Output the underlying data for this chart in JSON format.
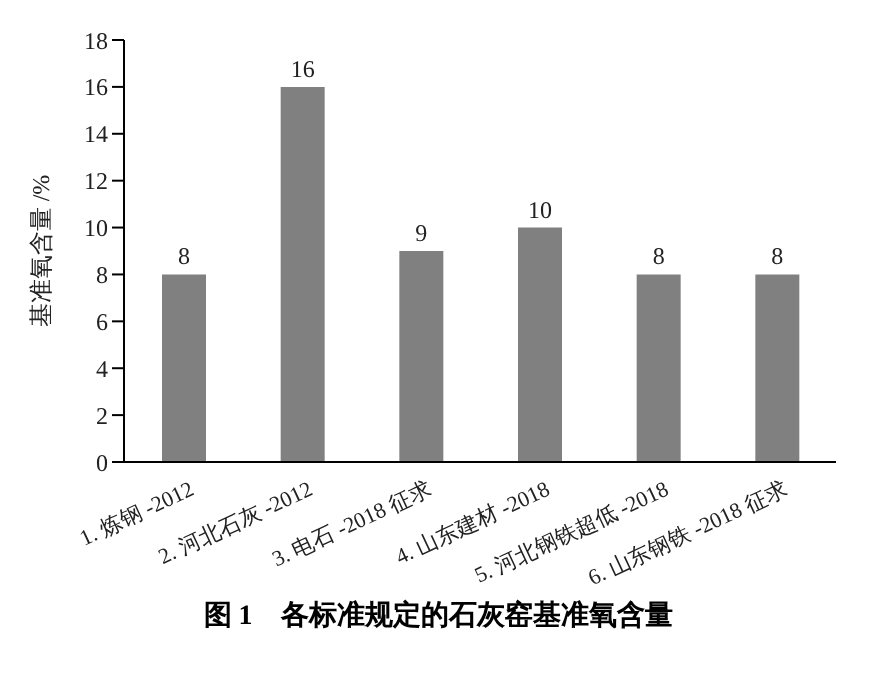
{
  "chart_data": {
    "type": "bar",
    "title": "图 1　各标准规定的石灰窑基准氧含量",
    "ylabel": "基准氧含量 /%",
    "categories": [
      "1. 炼钢 -2012",
      "2. 河北石灰 -2012",
      "3. 电石 -2018 征求",
      "4. 山东建材 -2018",
      "5. 河北钢铁超低 -2018",
      "6. 山东钢铁 -2018 征求"
    ],
    "values": [
      8,
      16,
      9,
      10,
      8,
      8
    ],
    "color": "#808080",
    "ylim": [
      0,
      18
    ],
    "yticks": [
      0,
      2,
      4,
      6,
      8,
      10,
      12,
      14,
      16,
      18
    ],
    "grid": false,
    "data_labels": true
  }
}
